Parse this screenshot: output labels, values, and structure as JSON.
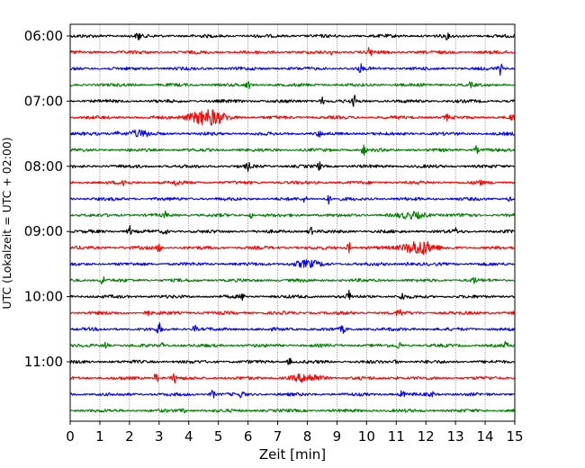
{
  "chart_data": {
    "type": "line",
    "title": "",
    "xlabel": "Zeit  [min]",
    "ylabel": "UTC (Lokalzeit = UTC + 02:00)",
    "xlim": [
      0,
      15
    ],
    "x_ticks": [
      "0",
      "1",
      "2",
      "3",
      "4",
      "5",
      "6",
      "7",
      "8",
      "9",
      "10",
      "11",
      "12",
      "13",
      "14",
      "15"
    ],
    "y_tick_labels": [
      {
        "time": "06:00",
        "row": 0
      },
      {
        "time": "07:00",
        "row": 4
      },
      {
        "time": "08:00",
        "row": 8
      },
      {
        "time": "09:00",
        "row": 12
      },
      {
        "time": "10:00",
        "row": 16
      },
      {
        "time": "11:00",
        "row": 20
      }
    ],
    "grid": "vertical dotted",
    "colors": [
      "#000000",
      "#ff0000",
      "#0000ff",
      "#008000"
    ],
    "traces": [
      {
        "start": "06:00",
        "color": "#000000",
        "events": [
          {
            "t": 2.3,
            "a": 5
          },
          {
            "t": 12.7,
            "a": 2.5
          }
        ]
      },
      {
        "start": "06:15",
        "color": "#ff0000",
        "events": [
          {
            "t": 8.8,
            "a": 2
          },
          {
            "t": 10.1,
            "a": 5
          }
        ]
      },
      {
        "start": "06:30",
        "color": "#0000ff",
        "events": [
          {
            "t": 9.8,
            "a": 4
          },
          {
            "t": 14.5,
            "a": 6
          }
        ]
      },
      {
        "start": "06:45",
        "color": "#008000",
        "events": [
          {
            "t": 6.0,
            "a": 4
          },
          {
            "t": 11.1,
            "a": 3
          },
          {
            "t": 13.5,
            "a": 2
          }
        ]
      },
      {
        "start": "07:00",
        "color": "#000000",
        "events": [
          {
            "t": 8.5,
            "a": 4
          },
          {
            "t": 9.6,
            "a": 6
          }
        ]
      },
      {
        "start": "07:15",
        "color": "#ff0000",
        "events": [
          {
            "t": 4.3,
            "a": 4,
            "w": 0.5
          },
          {
            "t": 4.8,
            "a": 6,
            "w": 0.5
          },
          {
            "t": 12.7,
            "a": 3
          },
          {
            "t": 14.9,
            "a": 3
          }
        ]
      },
      {
        "start": "07:30",
        "color": "#0000ff",
        "events": [
          {
            "t": 1.6,
            "a": 6
          },
          {
            "t": 2.3,
            "a": 3,
            "w": 0.4
          },
          {
            "t": 8.4,
            "a": 3
          }
        ]
      },
      {
        "start": "07:45",
        "color": "#008000",
        "events": [
          {
            "t": 9.9,
            "a": 6
          },
          {
            "t": 13.7,
            "a": 4
          }
        ]
      },
      {
        "start": "08:00",
        "color": "#000000",
        "events": [
          {
            "t": 6.0,
            "a": 4
          },
          {
            "t": 8.4,
            "a": 4
          }
        ]
      },
      {
        "start": "08:15",
        "color": "#ff0000",
        "events": [
          {
            "t": 1.8,
            "a": 6
          },
          {
            "t": 3.6,
            "a": 4
          },
          {
            "t": 13.8,
            "a": 4
          }
        ]
      },
      {
        "start": "08:30",
        "color": "#0000ff",
        "events": [
          {
            "t": 7.9,
            "a": 3
          },
          {
            "t": 8.7,
            "a": 6
          },
          {
            "t": 14.8,
            "a": 2
          }
        ]
      },
      {
        "start": "08:45",
        "color": "#008000",
        "events": [
          {
            "t": 3.2,
            "a": 3
          },
          {
            "t": 6.1,
            "a": 3
          },
          {
            "t": 11.6,
            "a": 3,
            "w": 0.5
          },
          {
            "t": 13.4,
            "a": 4
          }
        ]
      },
      {
        "start": "09:00",
        "color": "#000000",
        "events": [
          {
            "t": 2.0,
            "a": 6
          },
          {
            "t": 3.2,
            "a": 3
          },
          {
            "t": 8.1,
            "a": 5
          },
          {
            "t": 13.0,
            "a": 3
          }
        ]
      },
      {
        "start": "09:15",
        "color": "#ff0000",
        "events": [
          {
            "t": 3.0,
            "a": 5
          },
          {
            "t": 9.4,
            "a": 6
          },
          {
            "t": 11.5,
            "a": 4,
            "w": 0.4
          },
          {
            "t": 11.9,
            "a": 6,
            "w": 0.4
          }
        ]
      },
      {
        "start": "09:30",
        "color": "#0000ff",
        "events": [
          {
            "t": 8.0,
            "a": 3,
            "w": 0.5
          },
          {
            "t": 11.4,
            "a": 2
          }
        ]
      },
      {
        "start": "09:45",
        "color": "#008000",
        "events": [
          {
            "t": 1.1,
            "a": 6
          },
          {
            "t": 13.6,
            "a": 4
          }
        ]
      },
      {
        "start": "10:00",
        "color": "#000000",
        "events": [
          {
            "t": 5.8,
            "a": 3
          },
          {
            "t": 9.4,
            "a": 6
          },
          {
            "t": 11.2,
            "a": 4
          }
        ]
      },
      {
        "start": "10:15",
        "color": "#ff0000",
        "events": [
          {
            "t": 2.6,
            "a": 3
          },
          {
            "t": 11.1,
            "a": 5
          }
        ]
      },
      {
        "start": "10:30",
        "color": "#0000ff",
        "events": [
          {
            "t": 3.0,
            "a": 6
          },
          {
            "t": 4.2,
            "a": 4
          },
          {
            "t": 9.2,
            "a": 4
          }
        ]
      },
      {
        "start": "10:45",
        "color": "#008000",
        "events": [
          {
            "t": 1.2,
            "a": 4
          },
          {
            "t": 3.1,
            "a": 3
          },
          {
            "t": 11.1,
            "a": 4
          },
          {
            "t": 14.7,
            "a": 3
          }
        ]
      },
      {
        "start": "11:00",
        "color": "#000000",
        "events": [
          {
            "t": 7.4,
            "a": 4
          },
          {
            "t": 11.0,
            "a": 2
          }
        ]
      },
      {
        "start": "11:15",
        "color": "#ff0000",
        "events": [
          {
            "t": 2.9,
            "a": 6
          },
          {
            "t": 3.5,
            "a": 5
          },
          {
            "t": 8.0,
            "a": 4,
            "w": 0.5
          },
          {
            "t": 11.0,
            "a": 2
          }
        ]
      },
      {
        "start": "11:30",
        "color": "#0000ff",
        "events": [
          {
            "t": 4.8,
            "a": 5
          },
          {
            "t": 5.8,
            "a": 4
          },
          {
            "t": 11.2,
            "a": 4
          },
          {
            "t": 12.2,
            "a": 3
          }
        ]
      },
      {
        "start": "11:45",
        "color": "#008000",
        "events": [
          {
            "t": 3.8,
            "a": 3
          }
        ]
      }
    ]
  }
}
